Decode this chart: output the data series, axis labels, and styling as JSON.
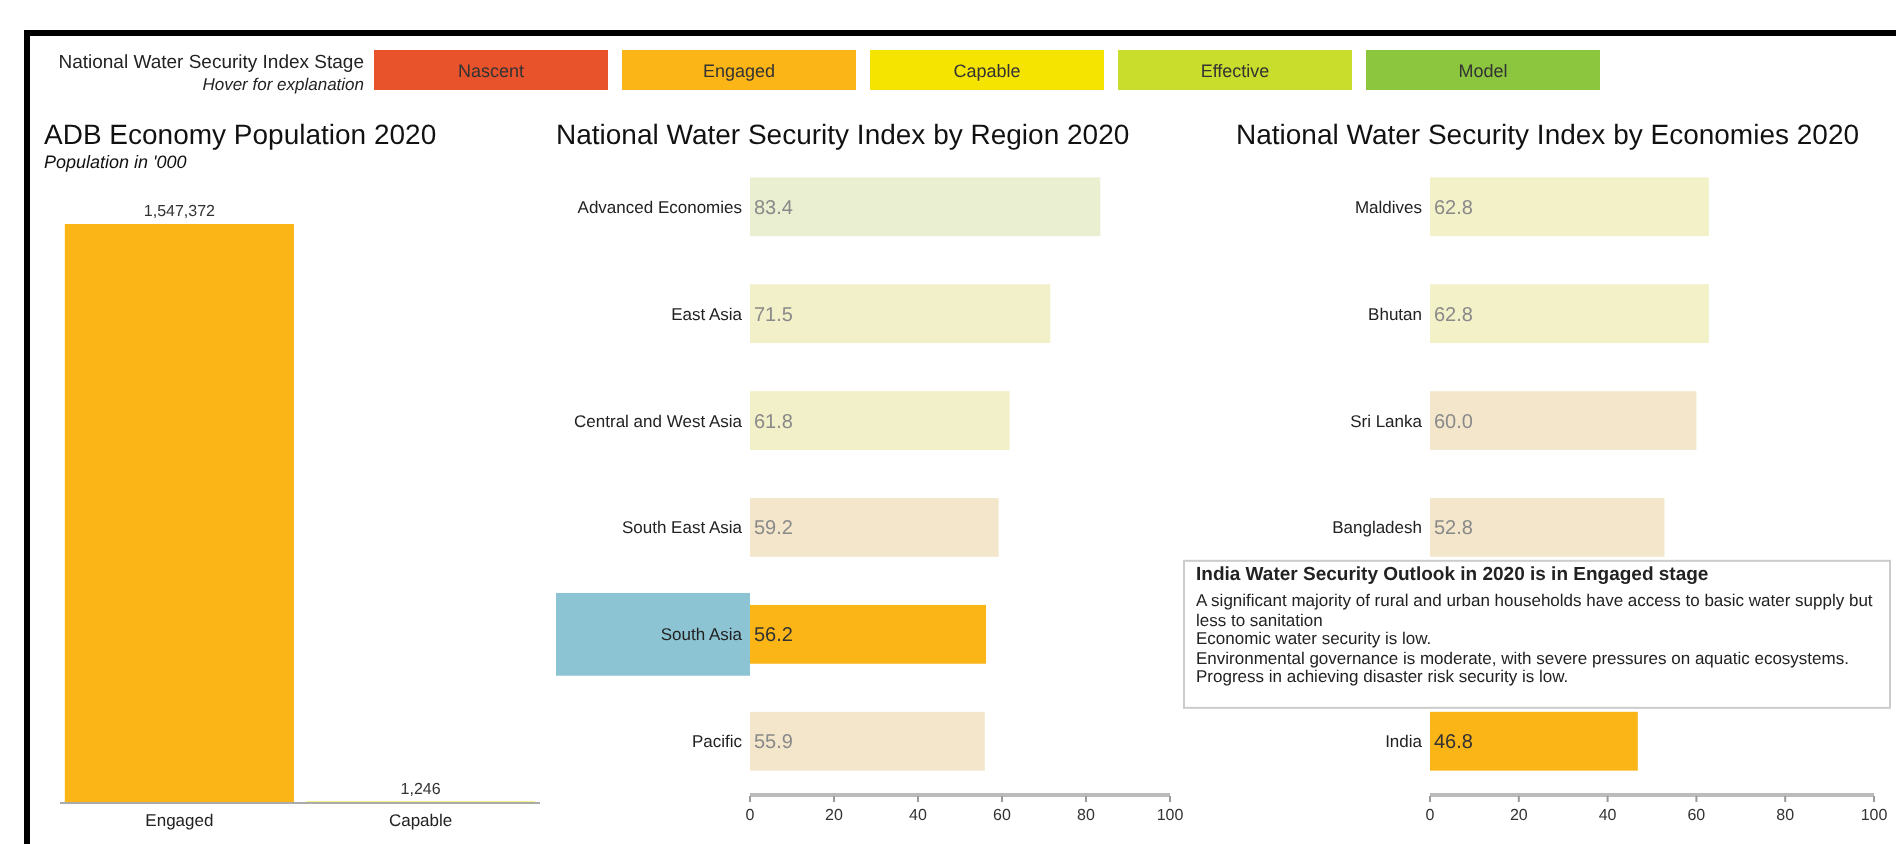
{
  "chart_data": [
    {
      "type": "other",
      "title": "National Water Security Index Stage",
      "subtitle": "Hover for explanation",
      "categories": [
        "Nascent",
        "Engaged",
        "Capable",
        "Effective",
        "Model"
      ],
      "colors": [
        "#e8532b",
        "#fbb516",
        "#f5e400",
        "#c9dd2c",
        "#8cc63f"
      ]
    },
    {
      "type": "bar",
      "title": "ADB Economy Population 2020",
      "subtitle": "Population in '000",
      "categories": [
        "Engaged",
        "Capable"
      ],
      "values": [
        1547372,
        1246
      ],
      "value_labels": [
        "1,547,372",
        "1,246"
      ],
      "colors": [
        "#fbb516",
        "#f5e400"
      ],
      "tick_labels": "x"
    },
    {
      "type": "bar",
      "orientation": "horizontal",
      "title": "National Water Security Index by Region 2020",
      "categories": [
        "Advanced Economies",
        "East Asia",
        "Central and West Asia",
        "South East Asia",
        "South Asia",
        "Pacific"
      ],
      "values": [
        83.4,
        71.5,
        61.8,
        59.2,
        56.2,
        55.9
      ],
      "colors": [
        "#e9efd0",
        "#f2f0c8",
        "#f2f0c8",
        "#f3e6cb",
        "#fbb516",
        "#f3e6cb"
      ],
      "xlim": [
        0,
        100
      ],
      "xticks": [
        0,
        20,
        40,
        60,
        80,
        100
      ],
      "data_labels": true
    },
    {
      "type": "bar",
      "orientation": "horizontal",
      "title": "National Water Security Index by Economies 2020",
      "categories": [
        "Maldives",
        "Bhutan",
        "Sri Lanka",
        "Bangladesh",
        null,
        "India"
      ],
      "values": [
        62.8,
        62.8,
        60.0,
        52.8,
        null,
        46.8
      ],
      "value_labels": [
        "62.8",
        "62.8",
        "60.0",
        "52.8",
        null,
        "46.8"
      ],
      "colors": [
        "#f2f1c8",
        "#f2f1c8",
        "#f3e6cb",
        "#f3e6cb",
        null,
        "#fbb516"
      ],
      "xlim": [
        0,
        100
      ],
      "xticks": [
        0,
        20,
        40,
        60,
        80,
        100
      ],
      "annotations": [
        "India Water Security Outlook in 2020 is in Engaged stage",
        "A significant majority of rural and urban households have access to basic water supply but less to sanitation",
        "Economic water security is low.",
        "Environmental governance is moderate, with severe pressures on aquatic ecosystems.",
        "Progress in achieving disaster risk security is low."
      ]
    }
  ]
}
